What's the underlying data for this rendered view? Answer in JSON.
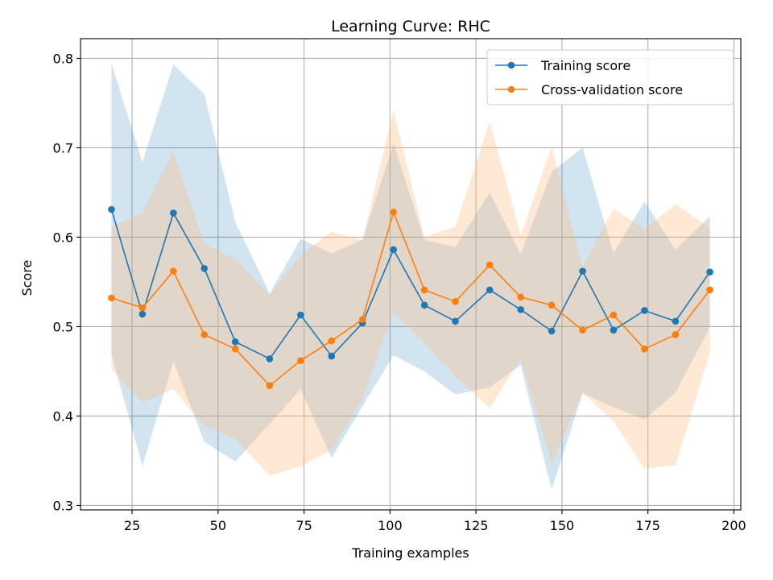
{
  "chart_data": {
    "type": "line",
    "title": "Learning Curve: RHC",
    "xlabel": "Training examples",
    "ylabel": "Score",
    "xlim": [
      10,
      202
    ],
    "ylim": [
      0.295,
      0.822
    ],
    "xticks": [
      25,
      50,
      75,
      100,
      125,
      150,
      175,
      200
    ],
    "yticks": [
      0.3,
      0.4,
      0.5,
      0.6,
      0.7,
      0.8
    ],
    "grid": true,
    "legend_position": "upper-right",
    "x": [
      19,
      28,
      37,
      46,
      55,
      65,
      74,
      83,
      92,
      101,
      110,
      119,
      129,
      138,
      147,
      156,
      165,
      174,
      183,
      193
    ],
    "series": [
      {
        "name": "Training score",
        "color": "#1f77b4",
        "fill_color": "#1f77b4",
        "values": [
          0.631,
          0.514,
          0.627,
          0.565,
          0.483,
          0.464,
          0.513,
          0.467,
          0.504,
          0.586,
          0.524,
          0.506,
          0.541,
          0.519,
          0.495,
          0.562,
          0.496,
          0.518,
          0.506,
          0.561
        ],
        "upper": [
          0.794,
          0.684,
          0.793,
          0.76,
          0.617,
          0.537,
          0.598,
          0.582,
          0.597,
          0.705,
          0.597,
          0.589,
          0.65,
          0.581,
          0.673,
          0.7,
          0.582,
          0.64,
          0.586,
          0.623
        ],
        "lower": [
          0.469,
          0.344,
          0.461,
          0.371,
          0.349,
          0.391,
          0.43,
          0.353,
          0.411,
          0.468,
          0.45,
          0.424,
          0.432,
          0.457,
          0.318,
          0.425,
          0.41,
          0.396,
          0.426,
          0.499
        ]
      },
      {
        "name": "Cross-validation score",
        "color": "#ff7f0e",
        "fill_color": "#ffbb78",
        "values": [
          0.532,
          0.521,
          0.562,
          0.491,
          0.475,
          0.434,
          0.462,
          0.484,
          0.508,
          0.628,
          0.541,
          0.528,
          0.569,
          0.533,
          0.524,
          0.496,
          0.513,
          0.475,
          0.491,
          0.541
        ],
        "upper": [
          0.612,
          0.627,
          0.695,
          0.593,
          0.575,
          0.536,
          0.58,
          0.606,
          0.597,
          0.742,
          0.6,
          0.612,
          0.729,
          0.602,
          0.701,
          0.566,
          0.632,
          0.609,
          0.637,
          0.611
        ],
        "lower": [
          0.452,
          0.415,
          0.43,
          0.389,
          0.375,
          0.333,
          0.344,
          0.362,
          0.419,
          0.515,
          0.482,
          0.444,
          0.409,
          0.464,
          0.347,
          0.426,
          0.394,
          0.341,
          0.345,
          0.471
        ]
      }
    ]
  }
}
